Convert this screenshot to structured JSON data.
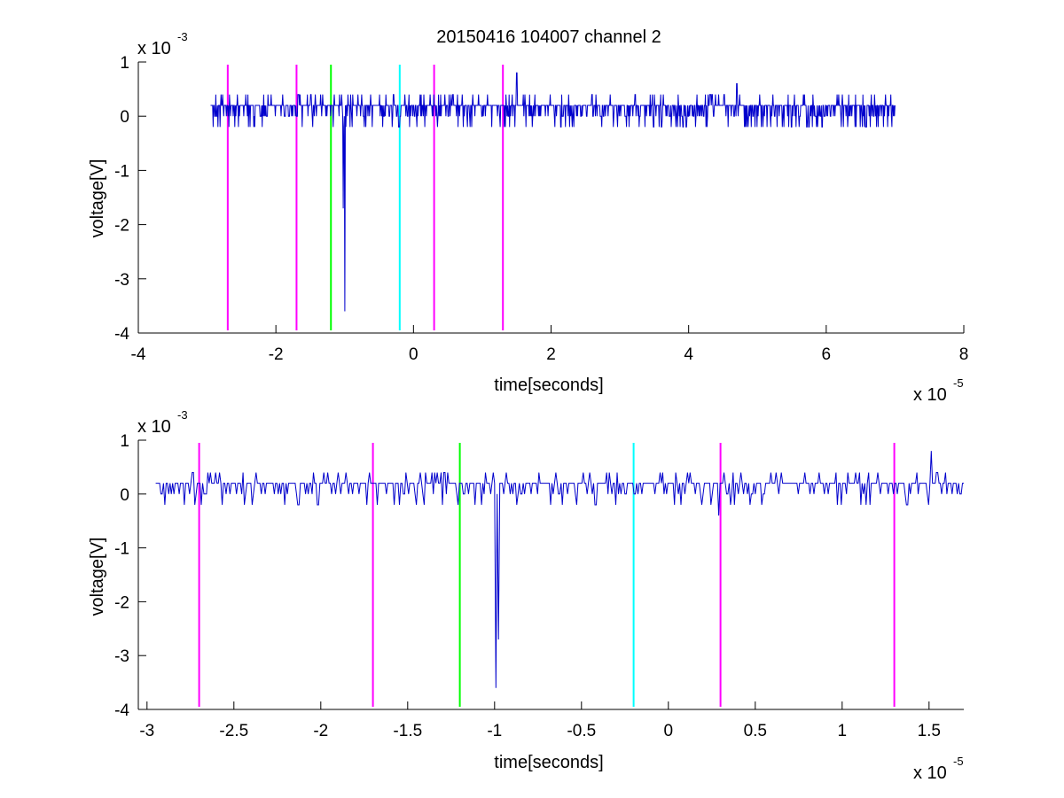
{
  "chart_data": [
    {
      "type": "line",
      "title": "20150416 104007 channel 2",
      "xlabel": "time[seconds]",
      "ylabel": "voltage[V]",
      "x_exponent": {
        "base": "x 10",
        "power": "-5"
      },
      "y_exponent": {
        "base": "x 10",
        "power": "-3"
      },
      "xlim": [
        -4,
        8
      ],
      "ylim": [
        -4,
        1
      ],
      "xticks": [
        -4,
        -2,
        0,
        2,
        4,
        6,
        8
      ],
      "xtick_labels": [
        "-4",
        "-2",
        "0",
        "2",
        "4",
        "6",
        "8"
      ],
      "yticks": [
        1,
        0,
        -1,
        -2,
        -3,
        -4
      ],
      "ytick_labels": [
        "1",
        "0",
        "-1",
        "-2",
        "-3",
        "-4"
      ],
      "grid": false,
      "vlines": [
        {
          "x": -2.7,
          "color": "#ff00ff"
        },
        {
          "x": -1.7,
          "color": "#ff00ff"
        },
        {
          "x": -1.2,
          "color": "#00ff00"
        },
        {
          "x": -0.2,
          "color": "#00ffff"
        },
        {
          "x": 0.3,
          "color": "#ff00ff"
        },
        {
          "x": 1.3,
          "color": "#ff00ff"
        }
      ],
      "signal": {
        "color": "#0000cc",
        "x_start": -2.95,
        "x_end": 7.0,
        "baseline": 0.1,
        "noise_amplitude": 0.3,
        "events": [
          {
            "x": -1.0,
            "y": -3.6
          },
          {
            "x": -1.02,
            "y": -1.7
          },
          {
            "x": 1.5,
            "y": 0.8
          },
          {
            "x": 4.7,
            "y": 0.6
          }
        ]
      }
    },
    {
      "type": "line",
      "xlabel": "time[seconds]",
      "ylabel": "voltage[V]",
      "x_exponent": {
        "base": "x 10",
        "power": "-5"
      },
      "y_exponent": {
        "base": "x 10",
        "power": "-3"
      },
      "xlim": [
        -3.05,
        1.7
      ],
      "ylim": [
        -4,
        1
      ],
      "xticks": [
        -3,
        -2.5,
        -2,
        -1.5,
        -1,
        -0.5,
        0,
        0.5,
        1,
        1.5
      ],
      "xtick_labels": [
        "-3",
        "-2.5",
        "-2",
        "-1.5",
        "-1",
        "-0.5",
        "0",
        "0.5",
        "1",
        "1.5"
      ],
      "yticks": [
        1,
        0,
        -1,
        -2,
        -3,
        -4
      ],
      "ytick_labels": [
        "1",
        "0",
        "-1",
        "-2",
        "-3",
        "-4"
      ],
      "grid": false,
      "vlines": [
        {
          "x": -2.7,
          "color": "#ff00ff"
        },
        {
          "x": -1.7,
          "color": "#ff00ff"
        },
        {
          "x": -1.2,
          "color": "#00ff00"
        },
        {
          "x": -0.2,
          "color": "#00ffff"
        },
        {
          "x": 0.3,
          "color": "#ff00ff"
        },
        {
          "x": 1.3,
          "color": "#ff00ff"
        }
      ],
      "signal": {
        "color": "#0000cc",
        "x_start": -2.95,
        "x_end": 1.7,
        "baseline": 0.1,
        "noise_amplitude": 0.3,
        "events": [
          {
            "x": -0.99,
            "y": -3.6
          },
          {
            "x": -0.98,
            "y": -2.7
          },
          {
            "x": 0.29,
            "y": -0.4
          },
          {
            "x": 1.51,
            "y": 0.8
          }
        ]
      }
    }
  ]
}
